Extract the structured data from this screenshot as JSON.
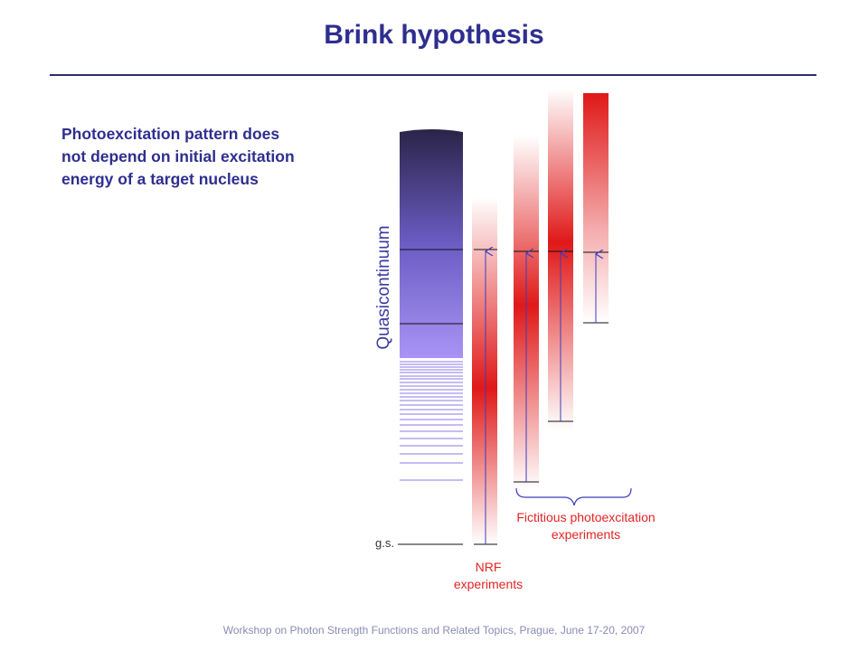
{
  "slide": {
    "title": "Brink hypothesis",
    "statement_lines": [
      "Photoexcitation pattern does",
      "not depend on initial excitation",
      "energy of a target nucleus"
    ],
    "footer": "Workshop on Photon Strength Functions and Related Topics, Prague, June 17-20, 2007"
  },
  "diagram": {
    "quasicontinuum_label": "Quasicontinuum",
    "ground_state_label": "g.s.",
    "nrf_label_lines": [
      "NRF",
      "experiments"
    ],
    "fictitious_label_lines": [
      "Fictitious photoexcitation",
      "experiments"
    ],
    "colors": {
      "title": "#2e2e8f",
      "level_scheme_dark": "#2a2448",
      "level_scheme_light": "#a894f4",
      "strength_red": "#e01818",
      "arrow_blue": "#3c3cc0",
      "label_red": "#e32424"
    }
  }
}
